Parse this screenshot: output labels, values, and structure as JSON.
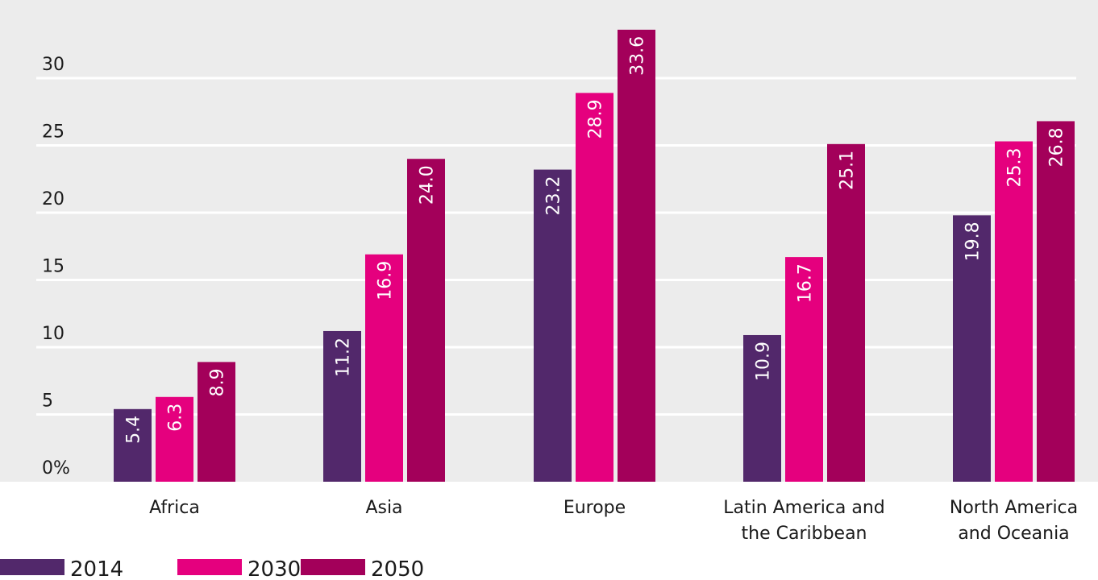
{
  "chart_data": {
    "type": "bar",
    "categories": [
      [
        "Africa"
      ],
      [
        "Asia"
      ],
      [
        "Europe"
      ],
      [
        "Latin America and",
        "the Caribbean"
      ],
      [
        "North America",
        "and Oceania"
      ]
    ],
    "series": [
      {
        "name": "2014",
        "color": "#52286b",
        "values": [
          5.4,
          11.2,
          23.2,
          10.9,
          19.8
        ],
        "labels": [
          "5.4",
          "11.2",
          "23.2",
          "10.9",
          "19.8"
        ]
      },
      {
        "name": "2030",
        "color": "#e5007e",
        "values": [
          6.3,
          16.9,
          28.9,
          16.7,
          25.3
        ],
        "labels": [
          "6.3",
          "16.9",
          "28.9",
          "16.7",
          "25.3"
        ]
      },
      {
        "name": "2050",
        "color": "#a3005a",
        "values": [
          8.9,
          24.0,
          33.6,
          25.1,
          26.8
        ],
        "labels": [
          "8.9",
          "24.0",
          "33.6",
          "25.1",
          "26.8"
        ]
      }
    ],
    "y_ticks": [
      0,
      5,
      10,
      15,
      20,
      25,
      30
    ],
    "y_tick_labels": [
      "0%",
      "5",
      "10",
      "15",
      "20",
      "25",
      "30"
    ],
    "ylim": [
      0,
      35
    ],
    "grid": true,
    "legend_position": "bottom-left",
    "colors": {
      "plot_background": "#ececec",
      "gridline": "#ffffff"
    }
  }
}
